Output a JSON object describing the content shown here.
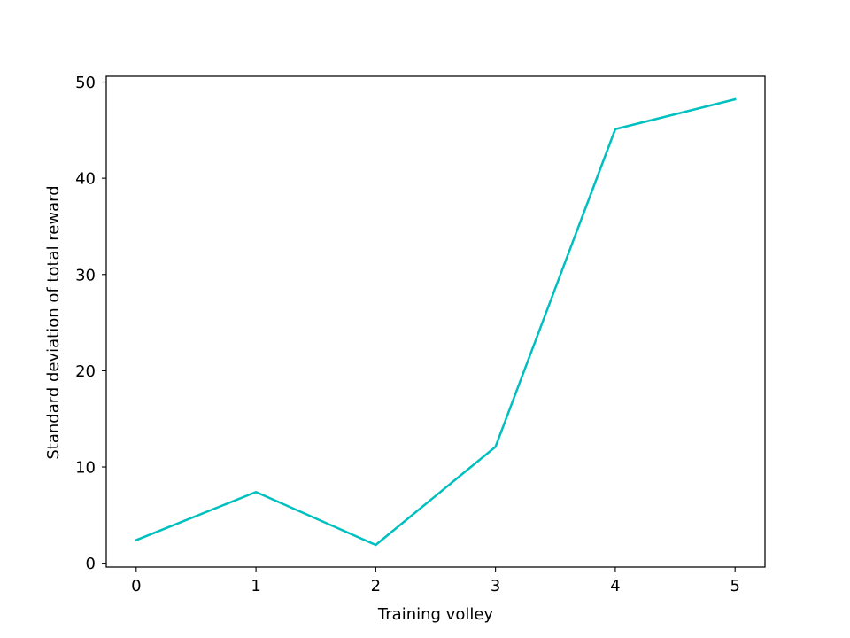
{
  "chart_data": {
    "type": "line",
    "title": "",
    "xlabel": "Training volley",
    "ylabel": "Standard deviation of total reward",
    "x": [
      0,
      1,
      2,
      3,
      4,
      5
    ],
    "xticks": [
      0,
      1,
      2,
      3,
      4,
      5
    ],
    "yticks": [
      0,
      10,
      20,
      30,
      40,
      50
    ],
    "xlim": [
      -0.25,
      5.25
    ],
    "ylim": [
      -0.4,
      50.6
    ],
    "series": [
      {
        "values": [
          2.4,
          7.4,
          1.9,
          12.1,
          45.1,
          48.2
        ],
        "color": "#00bfbf"
      }
    ],
    "grid": false,
    "legend": "none"
  }
}
